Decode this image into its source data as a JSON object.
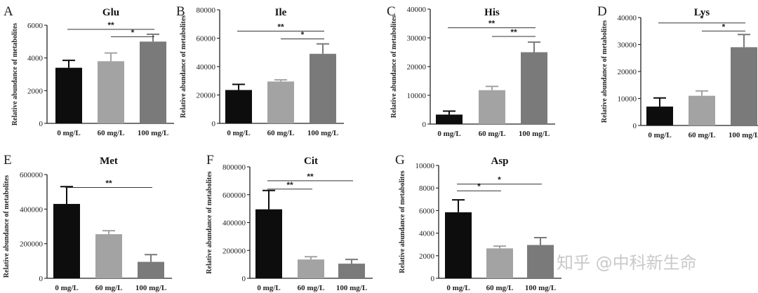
{
  "figure": {
    "watermark": "知乎 @中科新生命"
  },
  "chart_data": [
    {
      "panel": "A",
      "type": "bar",
      "title": "Glu",
      "ylabel": "Relative abundance of metabolites",
      "categories": [
        "0 mg/L",
        "60 mg/L",
        "100 mg/L"
      ],
      "values": [
        3400,
        3800,
        5000
      ],
      "errors": [
        450,
        500,
        450
      ],
      "bar_colors": [
        "#0d0d0d",
        "#a3a3a3",
        "#7a7a7a"
      ],
      "ylim": [
        0,
        6000
      ],
      "yticks": [
        0,
        2000,
        4000,
        6000
      ],
      "ytick_labels": [
        "0",
        "2000",
        "4000",
        "6000"
      ],
      "significance": [
        {
          "from": 0,
          "to": 2,
          "y": 5750,
          "label": "**"
        },
        {
          "from": 1,
          "to": 2,
          "y": 5300,
          "label": "*"
        }
      ]
    },
    {
      "panel": "B",
      "type": "bar",
      "title": "Ile",
      "ylabel": "Relative abundance of metabolites",
      "categories": [
        "0 mg/L",
        "60 mg/L",
        "100 mg/L"
      ],
      "values": [
        23500,
        29500,
        49000
      ],
      "errors": [
        4000,
        1200,
        7000
      ],
      "bar_colors": [
        "#0d0d0d",
        "#a3a3a3",
        "#7a7a7a"
      ],
      "ylim": [
        0,
        80000
      ],
      "yticks": [
        0,
        20000,
        40000,
        60000,
        80000
      ],
      "ytick_labels": [
        "0",
        "20000",
        "40000",
        "60000",
        "80000"
      ],
      "significance": [
        {
          "from": 0,
          "to": 2,
          "y": 65000,
          "label": "**"
        },
        {
          "from": 1,
          "to": 2,
          "y": 59500,
          "label": "*"
        }
      ]
    },
    {
      "panel": "C",
      "type": "bar",
      "title": "His",
      "ylabel": "Relative abundance of metabolites",
      "categories": [
        "0 mg/L",
        "60 mg/L",
        "100 mg/L"
      ],
      "values": [
        3300,
        11800,
        25000
      ],
      "errors": [
        1200,
        1300,
        3500
      ],
      "bar_colors": [
        "#0d0d0d",
        "#a3a3a3",
        "#7a7a7a"
      ],
      "ylim": [
        0,
        40000
      ],
      "yticks": [
        0,
        10000,
        20000,
        30000,
        40000
      ],
      "ytick_labels": [
        "0",
        "10000",
        "20000",
        "30000",
        "40000"
      ],
      "significance": [
        {
          "from": 0,
          "to": 2,
          "y": 33500,
          "label": "**"
        },
        {
          "from": 1,
          "to": 2,
          "y": 30500,
          "label": "**"
        }
      ]
    },
    {
      "panel": "D",
      "type": "bar",
      "title": "Lys",
      "ylabel": "Relative abundance of metabolites",
      "categories": [
        "0 mg/L",
        "60 mg/L",
        "100 mg/L"
      ],
      "values": [
        7000,
        11000,
        29000
      ],
      "errors": [
        3200,
        1800,
        4700
      ],
      "bar_colors": [
        "#0d0d0d",
        "#a3a3a3",
        "#7a7a7a"
      ],
      "ylim": [
        0,
        40000
      ],
      "yticks": [
        0,
        10000,
        20000,
        30000,
        40000
      ],
      "ytick_labels": [
        "0",
        "10000",
        "20000",
        "30000",
        "40000"
      ],
      "significance": [
        {
          "from": 0,
          "to": 2,
          "y": 38000,
          "label": "*"
        },
        {
          "from": 1,
          "to": 2,
          "y": 35000,
          "label": "*"
        }
      ]
    },
    {
      "panel": "E",
      "type": "bar",
      "title": "Met",
      "ylabel": "Relative abundance of metabolites",
      "categories": [
        "0 mg/L",
        "60 mg/L",
        "100 mg/L"
      ],
      "values": [
        430000,
        255000,
        95000
      ],
      "errors": [
        100000,
        20000,
        42000
      ],
      "bar_colors": [
        "#0d0d0d",
        "#a3a3a3",
        "#7a7a7a"
      ],
      "ylim": [
        0,
        600000
      ],
      "yticks": [
        0,
        200000,
        400000,
        600000
      ],
      "ytick_labels": [
        "0",
        "200000",
        "400000",
        "600000"
      ],
      "significance": [
        {
          "from": 0,
          "to": 2,
          "y": 525000,
          "label": "**"
        }
      ]
    },
    {
      "panel": "F",
      "type": "bar",
      "title": "Cit",
      "ylabel": "Relative abundance of metabolites",
      "categories": [
        "0 mg/L",
        "60 mg/L",
        "100 mg/L"
      ],
      "values": [
        495000,
        135000,
        105000
      ],
      "errors": [
        135000,
        20000,
        30000
      ],
      "bar_colors": [
        "#0d0d0d",
        "#a3a3a3",
        "#7a7a7a"
      ],
      "ylim": [
        0,
        800000
      ],
      "yticks": [
        0,
        200000,
        400000,
        600000,
        800000
      ],
      "ytick_labels": [
        "0",
        "200000",
        "400000",
        "600000",
        "800000"
      ],
      "significance": [
        {
          "from": 0,
          "to": 2,
          "y": 700000,
          "label": "**"
        },
        {
          "from": 0,
          "to": 1,
          "y": 640000,
          "label": "**"
        }
      ]
    },
    {
      "panel": "G",
      "type": "bar",
      "title": "Asp",
      "ylabel": "Relative abundance of metabolites",
      "categories": [
        "0 mg/L",
        "60 mg/L",
        "100 mg/L"
      ],
      "values": [
        5850,
        2650,
        2950
      ],
      "errors": [
        1100,
        200,
        650
      ],
      "bar_colors": [
        "#0d0d0d",
        "#a3a3a3",
        "#7a7a7a"
      ],
      "ylim": [
        0,
        10000
      ],
      "yticks": [
        0,
        2000,
        4000,
        6000,
        8000,
        10000
      ],
      "ytick_labels": [
        "0",
        "2000",
        "4000",
        "6000",
        "8000",
        "10000"
      ],
      "significance": [
        {
          "from": 0,
          "to": 2,
          "y": 8350,
          "label": "*"
        },
        {
          "from": 0,
          "to": 1,
          "y": 7750,
          "label": "*"
        }
      ]
    }
  ]
}
